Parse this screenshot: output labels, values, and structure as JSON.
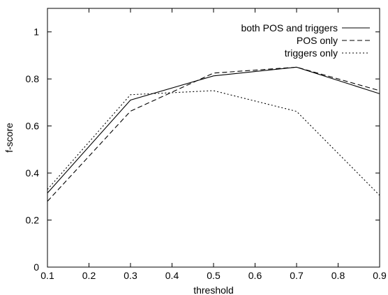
{
  "chart_data": {
    "type": "line",
    "title": "",
    "xlabel": "threshold",
    "ylabel": "f-score",
    "xlim": [
      0.1,
      0.9
    ],
    "ylim": [
      0,
      1.1
    ],
    "xticks": [
      "0.1",
      "0.2",
      "0.3",
      "0.4",
      "0.5",
      "0.6",
      "0.7",
      "0.8",
      "0.9"
    ],
    "yticks": [
      "0",
      "0.2",
      "0.4",
      "0.6",
      "0.8",
      "1"
    ],
    "grid": false,
    "legend_position": "top-right",
    "x": [
      0.1,
      0.3,
      0.5,
      0.7,
      0.9
    ],
    "series": [
      {
        "name": "both POS and triggers",
        "style": "solid",
        "values": [
          0.315,
          0.71,
          0.813,
          0.85,
          0.737
        ]
      },
      {
        "name": "POS only",
        "style": "dashed",
        "values": [
          0.28,
          0.663,
          0.825,
          0.85,
          0.75
        ]
      },
      {
        "name": "triggers only",
        "style": "dotted",
        "values": [
          0.33,
          0.733,
          0.75,
          0.662,
          0.305
        ]
      }
    ]
  }
}
